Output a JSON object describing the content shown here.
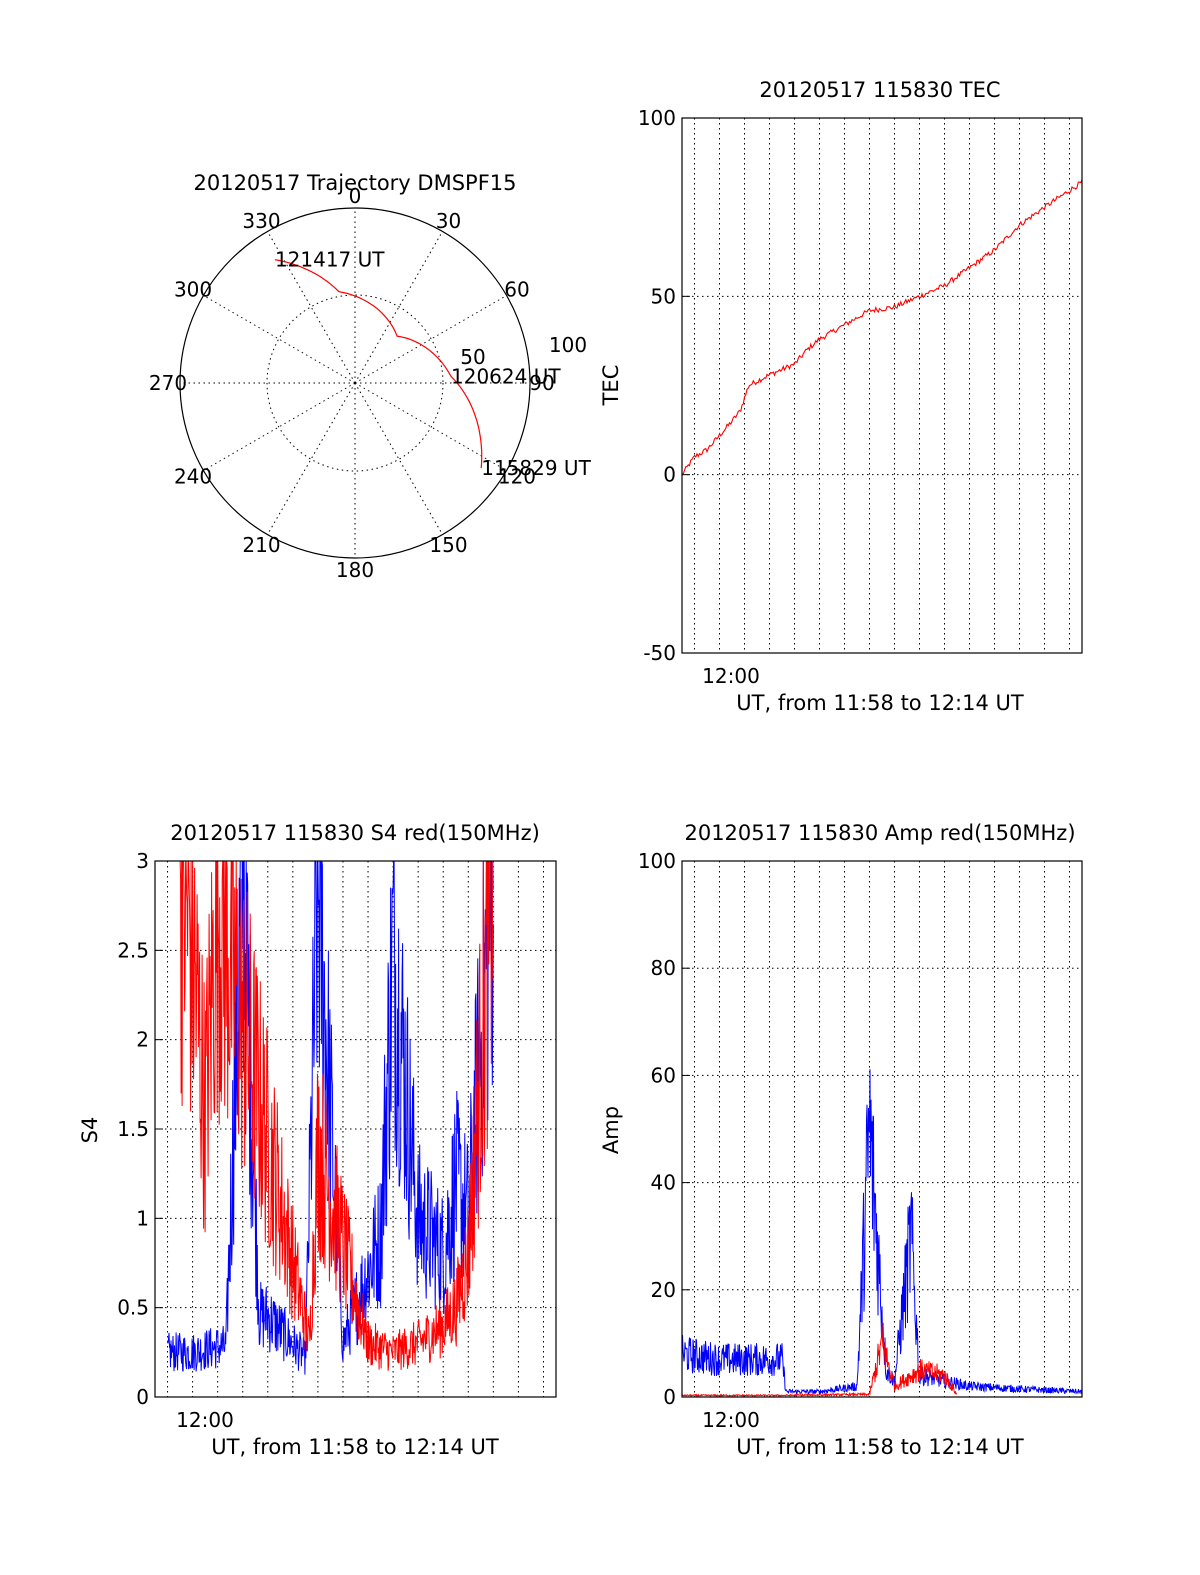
{
  "chart_data": [
    {
      "type": "polar",
      "title": "20120517 Trajectory DMSPF15",
      "angle_labels": [
        "0",
        "30",
        "60",
        "90",
        "120",
        "150",
        "180",
        "210",
        "240",
        "270",
        "300",
        "330"
      ],
      "radius_labels": [
        "50",
        "100"
      ],
      "rlim": [
        0,
        100
      ],
      "grid": true,
      "trajectory": {
        "color": "#ff0000",
        "points": [
          {
            "az": 327,
            "zen": 84,
            "label": "121417 UT"
          },
          {
            "az": 350,
            "zen": 53
          },
          {
            "az": 42,
            "zen": 36
          },
          {
            "az": 86,
            "zen": 55,
            "label": "120624 UT"
          },
          {
            "az": 124,
            "zen": 87,
            "label": "115829 UT"
          }
        ]
      }
    },
    {
      "type": "line",
      "title": "20120517 115830 TEC",
      "xlabel": "UT, from 11:58 to 12:14 UT",
      "ylabel": "TEC",
      "xlim": [
        "11:58:30",
        "12:14:30"
      ],
      "ylim": [
        -50,
        100
      ],
      "yticks": [
        "-50",
        "0",
        "50",
        "100"
      ],
      "xtick_label": "12:00",
      "grid": true,
      "series": [
        {
          "color": "#ff0000",
          "x": [
            "11:58:30",
            "11:59:00",
            "11:59:30",
            "12:00:00",
            "12:00:30",
            "12:00:50",
            "12:01:10",
            "12:02:00",
            "12:03:00",
            "12:03:30",
            "12:04:00",
            "12:05:00",
            "12:06:00",
            "12:07:00",
            "12:08:00",
            "12:09:00",
            "12:10:00",
            "12:11:00",
            "12:12:00",
            "12:13:00",
            "12:14:30"
          ],
          "y": [
            0,
            5,
            7,
            11,
            15,
            18,
            25,
            28,
            31,
            35,
            38,
            42,
            46,
            47,
            50,
            53,
            58,
            63,
            70,
            75,
            82
          ]
        }
      ]
    },
    {
      "type": "line",
      "title": "20120517 115830 S4 red(150MHz)",
      "xlabel": "UT, from 11:58 to 12:14 UT",
      "ylabel": "S4",
      "xlim": [
        "11:58:30",
        "12:14:30"
      ],
      "ylim": [
        0,
        3
      ],
      "yticks": [
        "0",
        "0.5",
        "1",
        "1.5",
        "2",
        "2.5",
        "3"
      ],
      "xtick_label": "12:00",
      "grid": true,
      "series": [
        {
          "color": "#0000ff",
          "x": [
            "11:59:00",
            "12:00:00",
            "12:01:00",
            "12:01:20",
            "12:02:00",
            "12:02:40",
            "12:03:00",
            "12:04:30",
            "12:05:00",
            "12:06:00",
            "12:07:00",
            "12:07:30",
            "12:08:00",
            "12:09:00",
            "12:10:00",
            "12:10:30",
            "12:11:00",
            "12:12:00"
          ],
          "y": [
            0.25,
            0.25,
            0.28,
            0.28,
            3.0,
            0.45,
            0.45,
            0.22,
            2.9,
            0.3,
            0.7,
            0.9,
            2.5,
            1.0,
            0.8,
            1.2,
            1.0,
            3.0
          ]
        },
        {
          "color": "#ff0000",
          "x": [
            "11:59:30",
            "12:00:00",
            "12:00:30",
            "12:01:00",
            "12:04:40",
            "12:05:00",
            "12:07:00",
            "12:08:00",
            "12:09:00",
            "12:10:00",
            "12:10:30",
            "12:11:00",
            "12:12:00"
          ],
          "y": [
            3.0,
            2.5,
            1.6,
            2.8,
            0.3,
            1.4,
            0.3,
            0.25,
            0.3,
            0.4,
            0.5,
            0.8,
            3.0
          ]
        }
      ]
    },
    {
      "type": "line",
      "title": "20120517 115830 Amp red(150MHz)",
      "xlabel": "UT, from 11:58 to 12:14 UT",
      "ylabel": "Amp",
      "xlim": [
        "11:58:30",
        "12:14:30"
      ],
      "ylim": [
        0,
        100
      ],
      "yticks": [
        "0",
        "20",
        "40",
        "60",
        "80",
        "100"
      ],
      "xtick_label": "12:00",
      "grid": true,
      "series": [
        {
          "color": "#0000ff",
          "x": [
            "11:58:30",
            "12:00:00",
            "12:02:30",
            "12:02:40",
            "12:04:00",
            "12:05:30",
            "12:06:00",
            "12:06:40",
            "12:07:00",
            "12:07:40",
            "12:08:00",
            "12:09:00",
            "12:10:00",
            "12:12:00",
            "12:14:30"
          ],
          "y": [
            8,
            7,
            7,
            1,
            1,
            2,
            50,
            5,
            3,
            30,
            4,
            3,
            2,
            1.5,
            1
          ]
        },
        {
          "color": "#ff0000",
          "x": [
            "11:58:30",
            "12:02:30",
            "12:06:00",
            "12:06:30",
            "12:07:00",
            "12:08:00",
            "12:09:00",
            "12:09:30"
          ],
          "y": [
            0.3,
            0.3,
            0.5,
            10,
            2,
            5,
            4,
            0.5
          ]
        }
      ]
    }
  ]
}
